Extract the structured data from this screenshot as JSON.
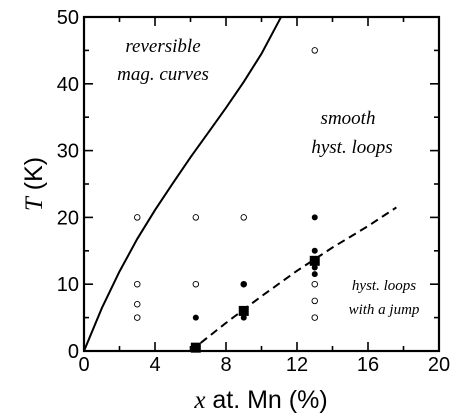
{
  "chart_data": {
    "type": "scatter",
    "title": "",
    "xlabel": {
      "variable": "x",
      "rest": " at. Mn (%)"
    },
    "ylabel": {
      "variable": "T",
      "rest": " (K)"
    },
    "xlim": [
      0,
      20
    ],
    "ylim": [
      0,
      50
    ],
    "xticks": [
      "0",
      "4",
      "8",
      "12",
      "16",
      "20"
    ],
    "yticks": [
      "0",
      "10",
      "20",
      "30",
      "40",
      "50"
    ],
    "grid": false,
    "series": [
      {
        "marker": "open-circle",
        "points": [
          [
            3,
            5
          ],
          [
            3,
            7
          ],
          [
            3,
            10
          ],
          [
            3,
            20
          ],
          [
            6.3,
            10
          ],
          [
            6.3,
            20
          ],
          [
            9,
            10
          ],
          [
            9,
            20
          ],
          [
            13,
            5
          ],
          [
            13,
            7.5
          ],
          [
            13,
            10
          ],
          [
            13,
            45
          ]
        ]
      },
      {
        "marker": "filled-circle",
        "points": [
          [
            6.3,
            5
          ],
          [
            9,
            5
          ],
          [
            9,
            10
          ],
          [
            13,
            11.5
          ],
          [
            13,
            12.5
          ],
          [
            13,
            15
          ],
          [
            13,
            20
          ]
        ]
      },
      {
        "marker": "filled-square",
        "points": [
          [
            6.3,
            0.5
          ],
          [
            9,
            6
          ],
          [
            13,
            13.5
          ]
        ]
      }
    ],
    "boundaries": [
      {
        "style": "solid",
        "points": [
          [
            0,
            0
          ],
          [
            1,
            6.4
          ],
          [
            2,
            11.9
          ],
          [
            3,
            16.8
          ],
          [
            4,
            21.1
          ],
          [
            5,
            25.1
          ],
          [
            6,
            29
          ],
          [
            7,
            32.7
          ],
          [
            8,
            36.4
          ],
          [
            9,
            40.3
          ],
          [
            10,
            44.5
          ],
          [
            11,
            49.5
          ],
          [
            11.3,
            51
          ]
        ]
      },
      {
        "style": "dashed",
        "points": [
          [
            6,
            0
          ],
          [
            8,
            4.2
          ],
          [
            10,
            8.2
          ],
          [
            12,
            12
          ],
          [
            14,
            15.5
          ],
          [
            16,
            18.7
          ],
          [
            17.6,
            21.5
          ]
        ]
      }
    ],
    "annotations": [
      {
        "lines": [
          "reversible",
          "mag. curves"
        ]
      },
      {
        "lines": [
          "smooth",
          "hyst. loops"
        ]
      },
      {
        "lines": [
          "hyst. loops",
          "with a jump"
        ]
      }
    ]
  }
}
